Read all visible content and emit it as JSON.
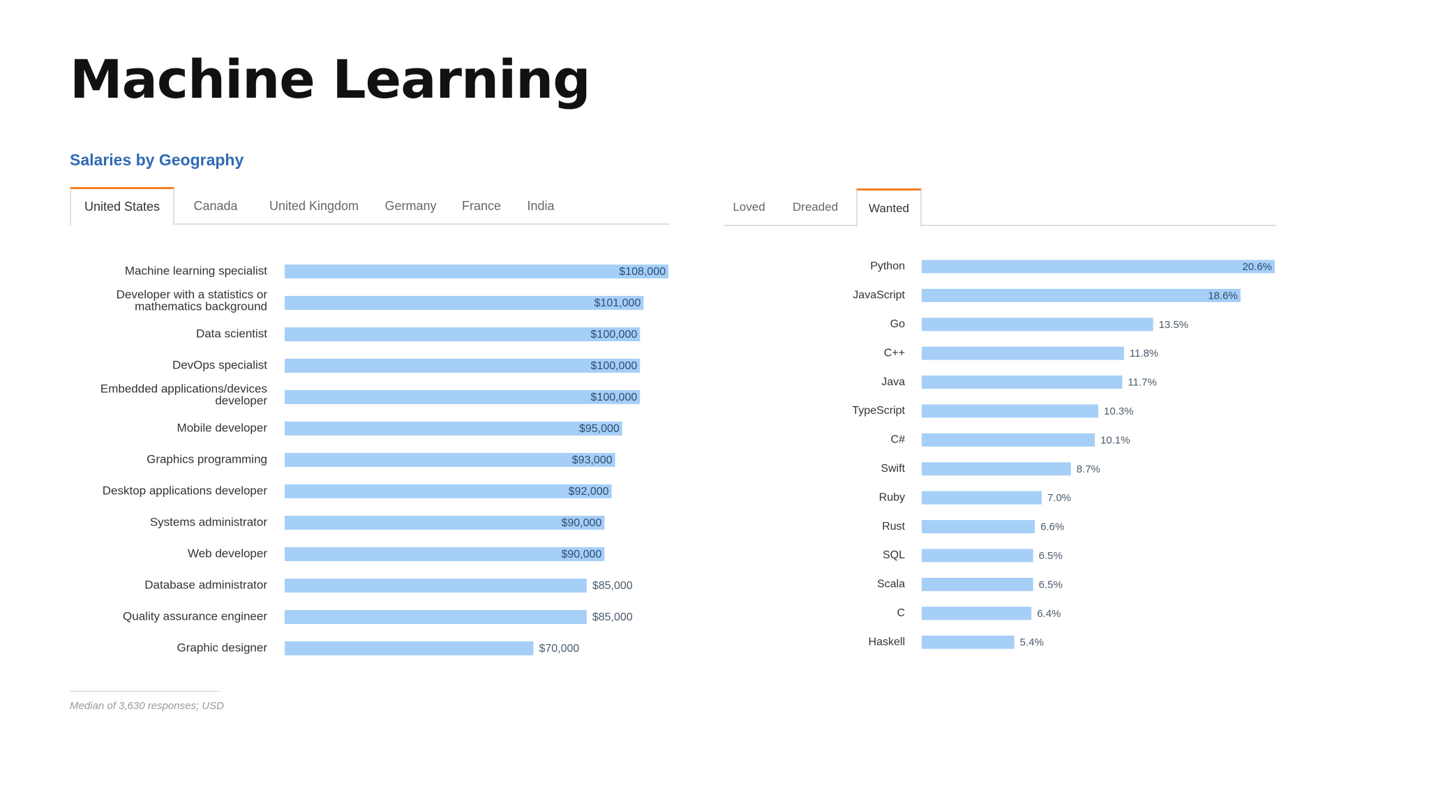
{
  "page": {
    "title": "Machine Learning"
  },
  "salaries": {
    "heading": "Salaries by Geography",
    "tabs": [
      "United States",
      "Canada",
      "United Kingdom",
      "Germany",
      "France",
      "India"
    ],
    "active_tab": "United States",
    "footnote": "Median of 3,630 responses; USD"
  },
  "languages": {
    "tabs": [
      "Loved",
      "Dreaded",
      "Wanted"
    ],
    "active_tab": "Wanted"
  },
  "colors": {
    "bar": "#a6cff7",
    "accent": "#f48024",
    "heading": "#2f6bb3"
  },
  "chart_data": [
    {
      "type": "bar",
      "orientation": "horizontal",
      "categories": [
        [
          "Machine learning specialist"
        ],
        [
          "Developer with a statistics or",
          "mathematics background"
        ],
        [
          "Data scientist"
        ],
        [
          "DevOps specialist"
        ],
        [
          "Embedded applications/devices",
          "developer"
        ],
        [
          "Mobile developer"
        ],
        [
          "Graphics programming"
        ],
        [
          "Desktop applications developer"
        ],
        [
          "Systems administrator"
        ],
        [
          "Web developer"
        ],
        [
          "Database administrator"
        ],
        [
          "Quality assurance engineer"
        ],
        [
          "Graphic designer"
        ]
      ],
      "values": [
        108000,
        101000,
        100000,
        100000,
        100000,
        95000,
        93000,
        92000,
        90000,
        90000,
        85000,
        85000,
        70000
      ],
      "labels": [
        "$108,000",
        "$101,000",
        "$100,000",
        "$100,000",
        "$100,000",
        "$95,000",
        "$93,000",
        "$92,000",
        "$90,000",
        "$90,000",
        "$85,000",
        "$85,000",
        "$70,000"
      ],
      "xlim": [
        0,
        108000
      ]
    },
    {
      "type": "bar",
      "orientation": "horizontal",
      "categories": [
        "Python",
        "JavaScript",
        "Go",
        "C++",
        "Java",
        "TypeScript",
        "C#",
        "Swift",
        "Ruby",
        "Rust",
        "SQL",
        "Scala",
        "C",
        "Haskell"
      ],
      "values": [
        20.6,
        18.6,
        13.5,
        11.8,
        11.7,
        10.3,
        10.1,
        8.7,
        7.0,
        6.6,
        6.5,
        6.5,
        6.4,
        5.4
      ],
      "labels": [
        "20.6%",
        "18.6%",
        "13.5%",
        "11.8%",
        "11.7%",
        "10.3%",
        "10.1%",
        "8.7%",
        "7.0%",
        "6.6%",
        "6.5%",
        "6.5%",
        "6.4%",
        "5.4%"
      ],
      "xlim": [
        0,
        20.6
      ]
    }
  ]
}
